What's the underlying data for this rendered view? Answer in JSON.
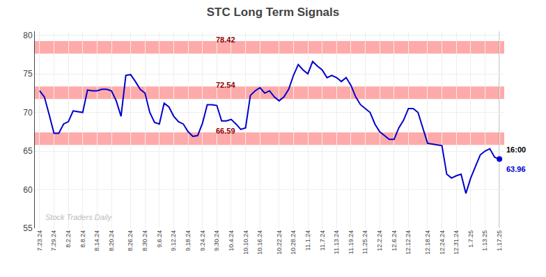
{
  "chart_data": {
    "type": "line",
    "title": "STC Long Term Signals",
    "categories": [
      "7.23.24",
      null,
      null,
      "7.29.24",
      null,
      null,
      "8.2.24",
      null,
      null,
      "8.8.24",
      null,
      null,
      "8.14.24",
      null,
      null,
      "8.20.24",
      null,
      null,
      null,
      "8.26.24",
      null,
      null,
      "8.30.24",
      null,
      null,
      "9.6.24",
      null,
      null,
      "9.12.24",
      null,
      null,
      "9.18.24",
      null,
      null,
      "9.24.24",
      null,
      null,
      "9.30.24",
      null,
      null,
      "10.4.24",
      null,
      null,
      "10.10.24",
      null,
      null,
      "10.16.24",
      null,
      null,
      null,
      "10.22.24",
      null,
      null,
      "10.28.24",
      null,
      null,
      "11.1.24",
      null,
      null,
      "11.7.24",
      null,
      null,
      "11.13.24",
      null,
      null,
      "11.19.24",
      null,
      null,
      "11.25.24",
      null,
      null,
      "12.2.24",
      null,
      null,
      "12.6.24",
      null,
      null,
      "12.12.24",
      null,
      null,
      null,
      "12.18.24",
      null,
      null,
      "12.24.24",
      null,
      null,
      "12.31.24",
      null,
      null,
      "1.7.25",
      null,
      null,
      "1.13.25",
      null,
      null,
      "1.17.25"
    ],
    "values": [
      72.8,
      72.0,
      69.7,
      67.3,
      67.3,
      68.5,
      68.8,
      70.2,
      70.1,
      70.0,
      72.9,
      72.8,
      72.8,
      73.0,
      73.0,
      72.8,
      71.5,
      69.5,
      74.8,
      74.9,
      74.0,
      73.0,
      72.5,
      70.0,
      68.7,
      68.5,
      71.2,
      70.7,
      69.5,
      68.8,
      68.5,
      67.5,
      66.9,
      67.0,
      68.6,
      71.0,
      71.0,
      70.9,
      68.9,
      68.9,
      69.1,
      68.5,
      67.8,
      68.0,
      72.2,
      72.8,
      73.2,
      72.5,
      72.8,
      72.0,
      71.5,
      72.0,
      73.0,
      74.8,
      76.2,
      75.5,
      75.0,
      76.6,
      76.0,
      75.5,
      74.5,
      74.8,
      74.5,
      74.0,
      74.5,
      73.5,
      72.0,
      71.0,
      70.5,
      70.0,
      68.5,
      67.5,
      67.0,
      66.5,
      66.5,
      68.0,
      69.0,
      70.5,
      70.5,
      70.0,
      68.0,
      66.0,
      65.9,
      65.8,
      65.7,
      62.0,
      61.5,
      61.8,
      62.0,
      59.5,
      61.5,
      63.0,
      64.5,
      65.0,
      65.3,
      64.2,
      63.96
    ],
    "color": "#0000cc",
    "ylim": [
      55,
      80.5
    ],
    "yticks": [
      55,
      60,
      65,
      70,
      75,
      80
    ],
    "grid": true,
    "reference_lines": [
      {
        "value": 78.42,
        "label": "78.42",
        "color": "#ffaaaa",
        "label_color": "#8b0000"
      },
      {
        "value": 72.54,
        "label": "72.54",
        "color": "#ffaaaa",
        "label_color": "#8b0000"
      },
      {
        "value": 66.59,
        "label": "66.59",
        "color": "#ffaaaa",
        "label_color": "#8b0000"
      }
    ],
    "annotations": [
      {
        "text": "Stock Traders Daily"
      },
      {
        "text": "16:00"
      },
      {
        "text": "63.96",
        "value": 63.96
      }
    ]
  }
}
